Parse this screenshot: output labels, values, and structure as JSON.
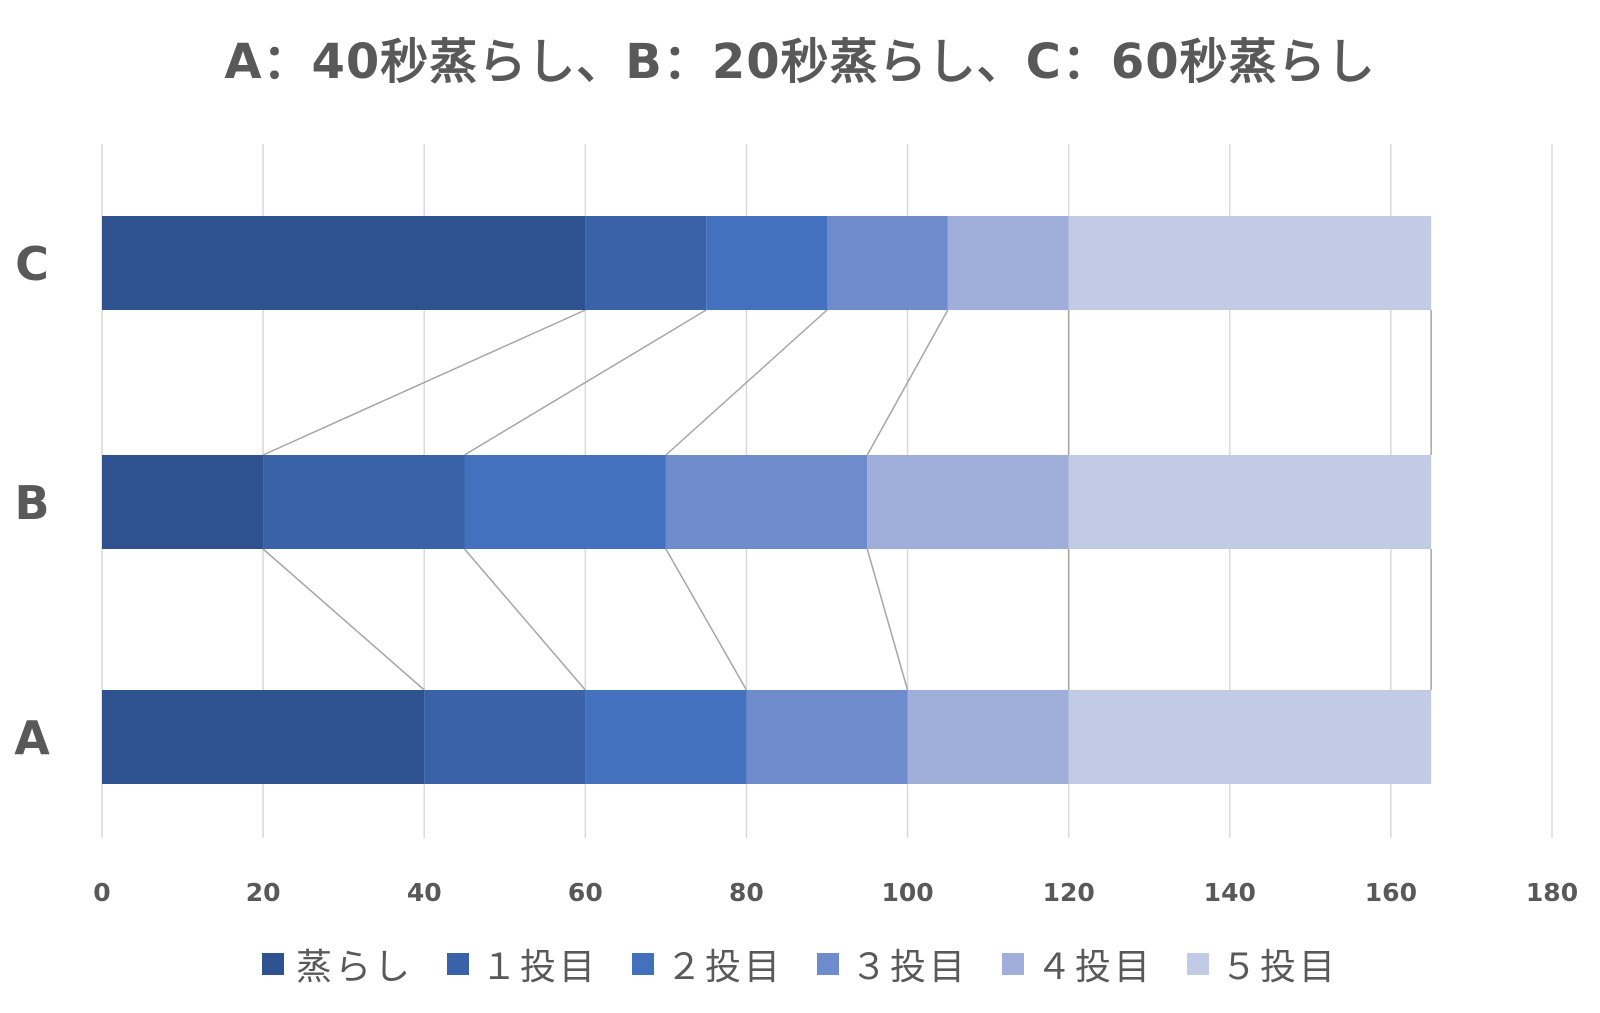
{
  "chart_data": {
    "type": "bar",
    "orientation": "horizontal",
    "stacked": true,
    "title": "A：40秒蒸らし、B：20秒蒸らし、C：60秒蒸らし",
    "categories": [
      "A",
      "B",
      "C"
    ],
    "xlim": [
      0,
      180
    ],
    "xticks": [
      0,
      20,
      40,
      60,
      80,
      100,
      120,
      140,
      160,
      180
    ],
    "xtick_labels": [
      "0",
      "20",
      "40",
      "60",
      "80",
      "100",
      "120",
      "140",
      "160",
      "180"
    ],
    "grid": true,
    "series_lines": true,
    "legend_position": "bottom",
    "series": [
      {
        "name": "蒸らし",
        "color": "#2e5290",
        "values": [
          40,
          20,
          60
        ]
      },
      {
        "name": "１投目",
        "color": "#3a62a8",
        "values": [
          20,
          25,
          15
        ]
      },
      {
        "name": "２投目",
        "color": "#4371be",
        "values": [
          20,
          25,
          15
        ]
      },
      {
        "name": "３投目",
        "color": "#6e8ccb",
        "values": [
          20,
          25,
          15
        ]
      },
      {
        "name": "４投目",
        "color": "#a0afd9",
        "values": [
          20,
          25,
          15
        ]
      },
      {
        "name": "５投目",
        "color": "#c2cbe6",
        "values": [
          45,
          45,
          45
        ]
      }
    ]
  }
}
